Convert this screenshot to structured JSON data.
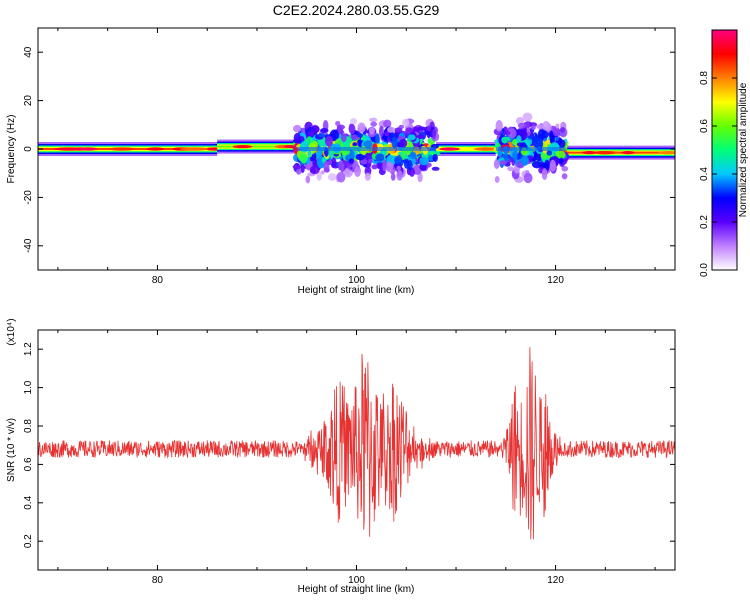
{
  "title": "C2E2.2024.280.03.55.G29",
  "chart_data": [
    {
      "type": "heatmap",
      "name": "spectrogram",
      "xlabel": "Height of straight line (km)",
      "ylabel": "Frequency (Hz)",
      "xlim": [
        68,
        132
      ],
      "ylim": [
        -50,
        50
      ],
      "xticks": [
        80,
        100,
        120
      ],
      "yticks": [
        -40,
        -20,
        0,
        20,
        40
      ],
      "colorbar": {
        "label": "Normalized spectral amplitude",
        "range": [
          0,
          1
        ],
        "ticks": [
          "0.0",
          "0.2",
          "0.4",
          "0.6",
          "0.8"
        ],
        "colors": [
          "#ffffff",
          "#c080ff",
          "#5a00ff",
          "#0000ff",
          "#00c8ff",
          "#00ff78",
          "#64ff00",
          "#ffff00",
          "#ff8000",
          "#ff0000",
          "#ff0080"
        ]
      },
      "segments": [
        {
          "x": [
            68,
            86
          ],
          "f": 0,
          "amp": 0.85
        },
        {
          "x": [
            86,
            94
          ],
          "f": 1,
          "amp": 0.6
        },
        {
          "x": [
            108,
            114
          ],
          "f": 0,
          "amp": 0.7
        },
        {
          "x": [
            120.5,
            132
          ],
          "f": -1.5,
          "amp": 0.85
        }
      ],
      "bursts": [
        {
          "x": [
            94,
            108
          ],
          "f_spread": 30
        },
        {
          "x": [
            114,
            121
          ],
          "f_spread": 28
        }
      ]
    },
    {
      "type": "line",
      "name": "snr",
      "xlabel": "Height of straight line (km)",
      "ylabel": "SNR (10 * v/v)",
      "ylabel_scale": "(x10⁴)",
      "xlim": [
        68,
        132
      ],
      "ylim": [
        0.05,
        1.3
      ],
      "xticks": [
        80,
        100,
        120
      ],
      "yticks": [
        "0.2",
        "0.4",
        "0.6",
        "0.8",
        "1.0",
        "1.2"
      ],
      "color": "#e83232",
      "baseline": 0.68,
      "bursts": [
        {
          "x": [
            94,
            108
          ],
          "amplitude": 0.55
        },
        {
          "x": [
            114,
            121
          ],
          "amplitude": 0.58
        }
      ]
    }
  ]
}
